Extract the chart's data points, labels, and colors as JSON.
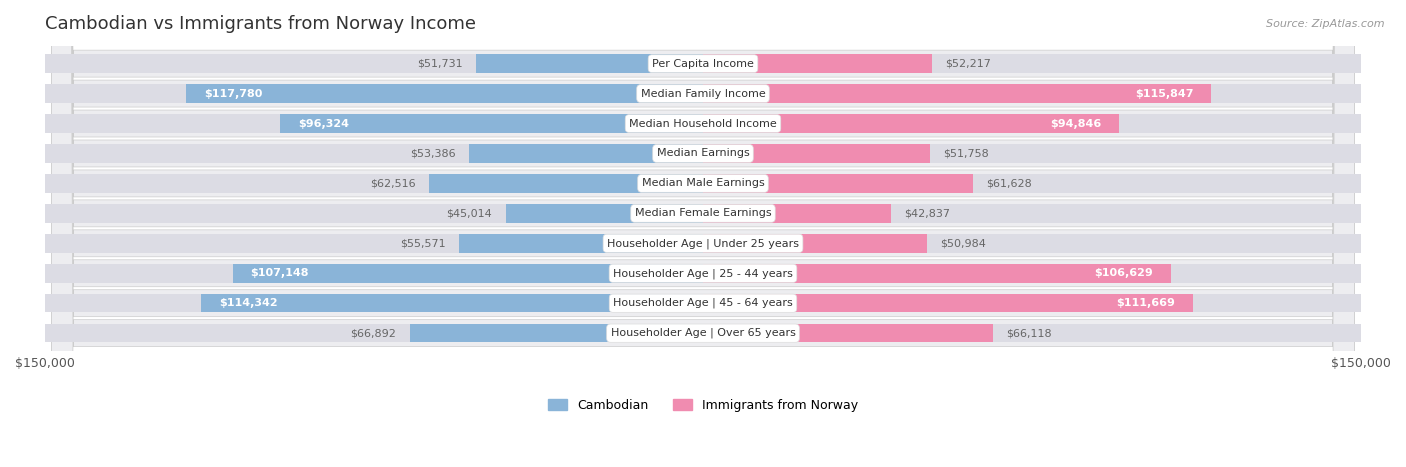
{
  "title": "Cambodian vs Immigrants from Norway Income",
  "source": "Source: ZipAtlas.com",
  "categories": [
    "Per Capita Income",
    "Median Family Income",
    "Median Household Income",
    "Median Earnings",
    "Median Male Earnings",
    "Median Female Earnings",
    "Householder Age | Under 25 years",
    "Householder Age | 25 - 44 years",
    "Householder Age | 45 - 64 years",
    "Householder Age | Over 65 years"
  ],
  "cambodian_values": [
    51731,
    117780,
    96324,
    53386,
    62516,
    45014,
    55571,
    107148,
    114342,
    66892
  ],
  "norway_values": [
    52217,
    115847,
    94846,
    51758,
    61628,
    42837,
    50984,
    106629,
    111669,
    66118
  ],
  "cambodian_labels": [
    "$51,731",
    "$117,780",
    "$96,324",
    "$53,386",
    "$62,516",
    "$45,014",
    "$55,571",
    "$107,148",
    "$114,342",
    "$66,892"
  ],
  "norway_labels": [
    "$52,217",
    "$115,847",
    "$94,846",
    "$51,758",
    "$61,628",
    "$42,837",
    "$50,984",
    "$106,629",
    "$111,669",
    "$66,118"
  ],
  "max_value": 150000,
  "cambodian_color": "#8ab4d8",
  "norway_color": "#f08cb0",
  "bar_bg_color": "#dcdce4",
  "row_bg_color": "#ededf0",
  "title_color": "#333333",
  "value_color_inside": "#ffffff",
  "value_color_outside": "#666666",
  "figsize": [
    14.06,
    4.67
  ],
  "dpi": 100,
  "inside_threshold": 75000
}
